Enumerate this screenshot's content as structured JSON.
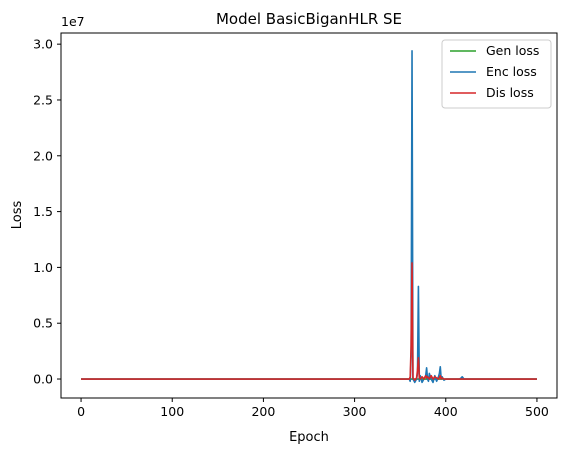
{
  "chart_data": {
    "type": "line",
    "title": "Model BasicBiganHLR SE",
    "xlabel": "Epoch",
    "ylabel": "Loss",
    "y_scale_label": "1e7",
    "xlim": [
      -22,
      522
    ],
    "ylim": [
      -1700000,
      31000000
    ],
    "x_ticks": [
      0,
      100,
      200,
      300,
      400,
      500
    ],
    "x_tick_labels": [
      "0",
      "100",
      "200",
      "300",
      "400",
      "500"
    ],
    "y_ticks": [
      0,
      5000000,
      10000000,
      15000000,
      20000000,
      25000000,
      30000000
    ],
    "y_tick_labels": [
      "0.0",
      "0.5",
      "1.0",
      "1.5",
      "2.0",
      "2.5",
      "3.0"
    ],
    "grid": false,
    "legend_position": "top-right",
    "series": [
      {
        "name": "Gen loss",
        "color": "#2ca02c",
        "x": [
          0,
          500
        ],
        "y": [
          0,
          0
        ]
      },
      {
        "name": "Enc loss",
        "color": "#1f77b4",
        "x": [
          0,
          360,
          361,
          362,
          363,
          364,
          366,
          368,
          369,
          370,
          371,
          372,
          374,
          376,
          378,
          379,
          380,
          381,
          382,
          384,
          386,
          388,
          389,
          390,
          392,
          393,
          394,
          395,
          396,
          398,
          400,
          405,
          410,
          415,
          417,
          418,
          419,
          420,
          425,
          430,
          500
        ],
        "y": [
          0,
          0,
          -200000,
          2000000,
          29400000,
          0,
          -300000,
          0,
          500000,
          8300000,
          -200000,
          300000,
          -300000,
          0,
          300000,
          1000000,
          0,
          -200000,
          500000,
          0,
          -300000,
          300000,
          0,
          -200000,
          200000,
          500000,
          1100000,
          0,
          200000,
          -100000,
          0,
          0,
          0,
          0,
          100000,
          200000,
          100000,
          0,
          0,
          0,
          0
        ]
      },
      {
        "name": "Dis loss",
        "color": "#d62728",
        "x": [
          0,
          360,
          361,
          362,
          363,
          364,
          366,
          368,
          369,
          370,
          371,
          372,
          374,
          376,
          378,
          379,
          380,
          382,
          384,
          386,
          388,
          390,
          392,
          394,
          395,
          396,
          398,
          400,
          500
        ],
        "y": [
          0,
          0,
          200000,
          3000000,
          10400000,
          100000,
          -100000,
          100000,
          800000,
          1900000,
          100000,
          0,
          200000,
          0,
          300000,
          100000,
          200000,
          0,
          300000,
          0,
          200000,
          100000,
          0,
          300000,
          0,
          100000,
          0,
          0,
          0
        ]
      }
    ]
  }
}
